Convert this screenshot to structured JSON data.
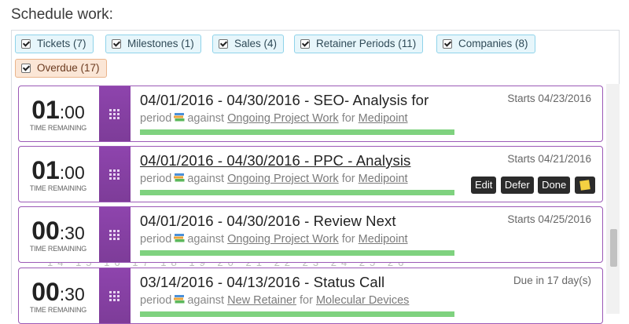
{
  "header": {
    "title": "Schedule work:"
  },
  "filters": [
    {
      "label": "Tickets (7)"
    },
    {
      "label": "Milestones (1)"
    },
    {
      "label": "Sales (4)"
    },
    {
      "label": "Retainer Periods (11)"
    },
    {
      "label": "Companies (8)"
    },
    {
      "label": "Overdue (17)"
    }
  ],
  "time_remaining_label": "TIME REMAINING",
  "cards": [
    {
      "hours": "01",
      "minutes": ":00",
      "title": "04/01/2016 - 04/30/2016 - SEO- Analysis for",
      "type": "period",
      "against": "against",
      "project": "Ongoing Project Work",
      "for": "for",
      "client": "Medipoint",
      "status": "Starts 04/23/2016",
      "progress": 1.0
    },
    {
      "hours": "01",
      "minutes": ":00",
      "title": "04/01/2016 - 04/30/2016 - PPC - Analysis",
      "type": "period",
      "against": "against",
      "project": "Ongoing Project Work",
      "for": "for",
      "client": "Medipoint",
      "status": "Starts 04/21/2016",
      "progress": 1.0
    },
    {
      "hours": "00",
      "minutes": ":30",
      "title": "04/01/2016 - 04/30/2016 - Review Next",
      "type": "period",
      "against": "against",
      "project": "Ongoing Project Work",
      "for": "for",
      "client": "Medipoint",
      "status": "Starts 04/25/2016",
      "progress": 1.0
    },
    {
      "hours": "00",
      "minutes": ":30",
      "title": "03/14/2016 - 04/13/2016 - Status Call",
      "type": "period",
      "against": "against",
      "project": "New Retainer",
      "for": "for",
      "client": "Molecular Devices",
      "status": "Due in 17 day(s)",
      "progress": 1.0
    }
  ],
  "actions": {
    "edit": "Edit",
    "defer": "Defer",
    "done": "Done"
  },
  "background_calendar_text": "14 15 16 17 18 19 20 21 22 23 24 25 26"
}
